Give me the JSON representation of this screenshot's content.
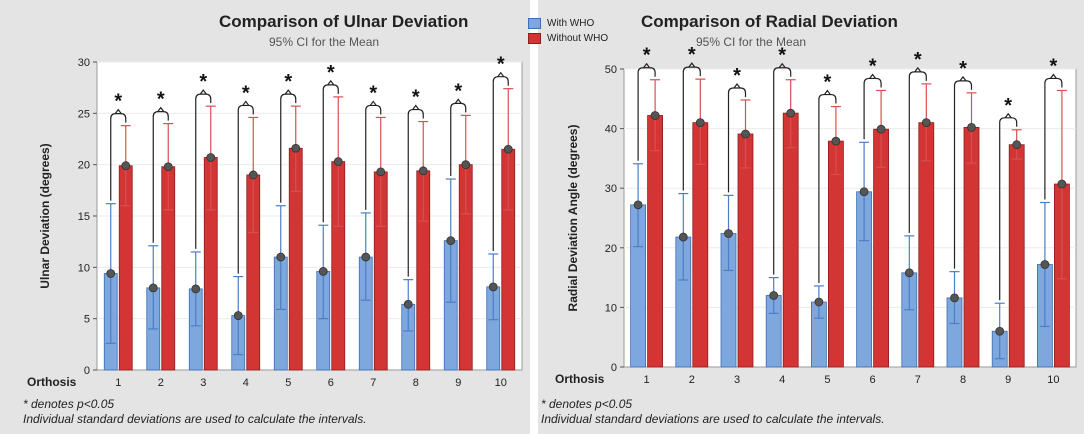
{
  "colors": {
    "with_who": "#7ea7dd",
    "with_who_edge": "#3b6fb6",
    "with_who_ci": "#4a7fc6",
    "without_who": "#d33535",
    "without_who_edge": "#8e1d1d",
    "without_who_ci": "#d84f4f",
    "panel_bg": "#e4e4e4",
    "dot": "#555555"
  },
  "legend": {
    "with_label": "With WHO",
    "without_label": "Without WHO"
  },
  "chart_data": [
    {
      "type": "bar",
      "title": "Comparison of Ulnar Deviation",
      "subtitle": "95% CI for the Mean",
      "xlabel": "Orthosis",
      "ylabel": "Ulnar Deviation (degrees)",
      "ylim": [
        0,
        30
      ],
      "yticks": [
        0,
        5,
        10,
        15,
        20,
        25,
        30
      ],
      "categories": [
        "1",
        "2",
        "3",
        "4",
        "5",
        "6",
        "7",
        "8",
        "9",
        "10"
      ],
      "series": [
        {
          "name": "With WHO",
          "values": [
            9.4,
            8.0,
            7.9,
            5.3,
            11.0,
            9.6,
            11.0,
            6.4,
            12.6,
            8.1
          ],
          "ci_low": [
            2.6,
            4.0,
            4.3,
            1.5,
            5.9,
            5.0,
            6.8,
            3.8,
            6.6,
            4.9
          ],
          "ci_high": [
            16.2,
            12.1,
            11.5,
            9.1,
            16.0,
            14.1,
            15.3,
            8.8,
            18.6,
            11.3
          ]
        },
        {
          "name": "Without WHO",
          "values": [
            19.9,
            19.8,
            20.7,
            19.0,
            21.6,
            20.3,
            19.3,
            19.4,
            20.0,
            21.5
          ],
          "ci_low": [
            16.0,
            15.6,
            15.6,
            13.4,
            17.4,
            14.0,
            14.0,
            14.5,
            15.2,
            15.6
          ],
          "ci_high": [
            23.8,
            24.0,
            25.7,
            24.6,
            25.7,
            26.6,
            24.6,
            24.2,
            24.8,
            27.4
          ]
        }
      ],
      "significance": [
        "*",
        "*",
        "*",
        "*",
        "*",
        "*",
        "*",
        "*",
        "*",
        "*"
      ],
      "footnote_line1": "* denotes p<0.05",
      "footnote_line2": "Individual standard deviations are used to calculate the intervals."
    },
    {
      "type": "bar",
      "title": "Comparison of Radial Deviation",
      "subtitle": "95% CI for the Mean",
      "xlabel": "Orthosis",
      "ylabel": "Radial Deviation Angle (degrees)",
      "ylim": [
        0,
        50
      ],
      "yticks": [
        0,
        10,
        20,
        30,
        40,
        50
      ],
      "categories": [
        "1",
        "2",
        "3",
        "4",
        "5",
        "6",
        "7",
        "8",
        "9",
        "10"
      ],
      "series": [
        {
          "name": "With WHO",
          "values": [
            27.2,
            21.8,
            22.4,
            12.0,
            10.9,
            29.4,
            15.8,
            11.6,
            6.0,
            17.2
          ],
          "ci_low": [
            20.2,
            14.6,
            16.2,
            9.0,
            8.2,
            21.2,
            9.6,
            7.3,
            1.4,
            6.8
          ],
          "ci_high": [
            34.1,
            29.1,
            28.8,
            15.0,
            13.6,
            37.7,
            22.0,
            16.0,
            10.7,
            27.6
          ]
        },
        {
          "name": "Without WHO",
          "values": [
            42.2,
            41.0,
            39.1,
            42.6,
            37.9,
            39.9,
            41.0,
            40.2,
            37.3,
            30.7
          ],
          "ci_low": [
            36.3,
            34.0,
            33.4,
            36.8,
            32.3,
            33.5,
            34.6,
            34.2,
            34.9,
            14.8
          ],
          "ci_high": [
            48.2,
            48.3,
            44.8,
            48.2,
            43.7,
            46.4,
            47.5,
            46.0,
            39.8,
            46.4
          ]
        }
      ],
      "significance": [
        "*",
        "*",
        "*",
        "*",
        "*",
        "*",
        "*",
        "*",
        "*",
        "*"
      ],
      "footnote_line1": "* denotes p<0.05",
      "footnote_line2": "Individual standard deviations are used to calculate the intervals."
    }
  ]
}
